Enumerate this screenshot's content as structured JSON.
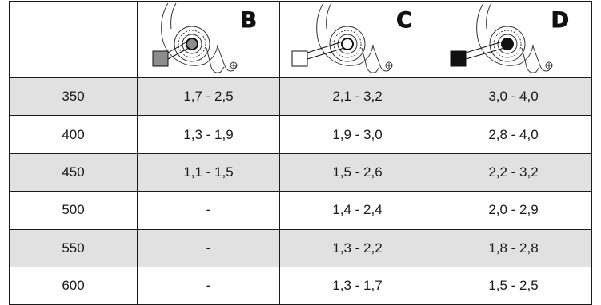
{
  "table": {
    "columns": [
      {
        "letter": "",
        "swatch": ""
      },
      {
        "letter": "B",
        "swatch": "#8c8c8c"
      },
      {
        "letter": "C",
        "swatch": "#ffffff"
      },
      {
        "letter": "D",
        "swatch": "#111111"
      }
    ],
    "rows": [
      {
        "value": "350",
        "b": "1,7 - 2,5",
        "c": "2,1 - 3,2",
        "d": "3,0 - 4,0",
        "shaded": true
      },
      {
        "value": "400",
        "b": "1,3 - 1,9",
        "c": "1,9 - 3,0",
        "d": "2,8 - 4,0",
        "shaded": false
      },
      {
        "value": "450",
        "b": "1,1 - 1,5",
        "c": "1,5 - 2,6",
        "d": "2,2 - 3,2",
        "shaded": true
      },
      {
        "value": "500",
        "b": "-",
        "c": "1,4 - 2,4",
        "d": "2,0 - 2,9",
        "shaded": false
      },
      {
        "value": "550",
        "b": "-",
        "c": "1,3 - 2,2",
        "d": "1,8 - 2,8",
        "shaded": true
      },
      {
        "value": "600",
        "b": "-",
        "c": "1,3 - 1,7",
        "d": "1,5 - 2,5",
        "shaded": false
      }
    ]
  }
}
